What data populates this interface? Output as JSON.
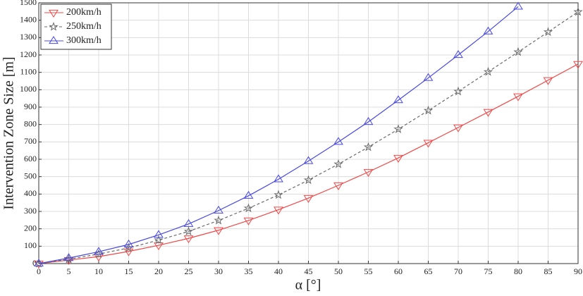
{
  "chart_data": {
    "type": "line",
    "xlabel": "α [°]",
    "ylabel": "Intervention Zone Size [m]",
    "x": [
      0,
      5,
      10,
      15,
      20,
      25,
      30,
      35,
      40,
      45,
      50,
      55,
      60,
      65,
      70,
      75,
      80,
      85,
      90
    ],
    "series": [
      {
        "name": "200km/h",
        "color": "#f04848",
        "marker": "triangle-down",
        "linestyle": "solid",
        "values": [
          0,
          20,
          40,
          70,
          105,
          145,
          192,
          248,
          310,
          377,
          450,
          527,
          608,
          695,
          783,
          872,
          962,
          1055,
          1148
        ]
      },
      {
        "name": "250km/h",
        "color": "#6a6a6a",
        "marker": "star",
        "linestyle": "dashed",
        "values": [
          0,
          25,
          55,
          90,
          135,
          185,
          248,
          318,
          395,
          480,
          572,
          670,
          773,
          880,
          990,
          1103,
          1217,
          1332,
          1448
        ]
      },
      {
        "name": "300km/h",
        "color": "#4848e0",
        "marker": "triangle-up",
        "linestyle": "solid",
        "values": [
          0,
          32,
          68,
          110,
          165,
          228,
          305,
          390,
          485,
          590,
          700,
          815,
          940,
          1068,
          1200,
          1335,
          1478,
          null,
          null
        ]
      }
    ],
    "xlim": [
      0,
      90
    ],
    "xticks": [
      0,
      5,
      10,
      15,
      20,
      25,
      30,
      35,
      40,
      45,
      50,
      55,
      60,
      65,
      70,
      75,
      80,
      85,
      90
    ],
    "ylim": [
      0,
      1500
    ],
    "yticks": [
      0,
      100,
      200,
      300,
      400,
      500,
      600,
      700,
      800,
      900,
      1000,
      1100,
      1200,
      1300,
      1400,
      1500
    ],
    "grid": true,
    "legend": "upper left"
  }
}
